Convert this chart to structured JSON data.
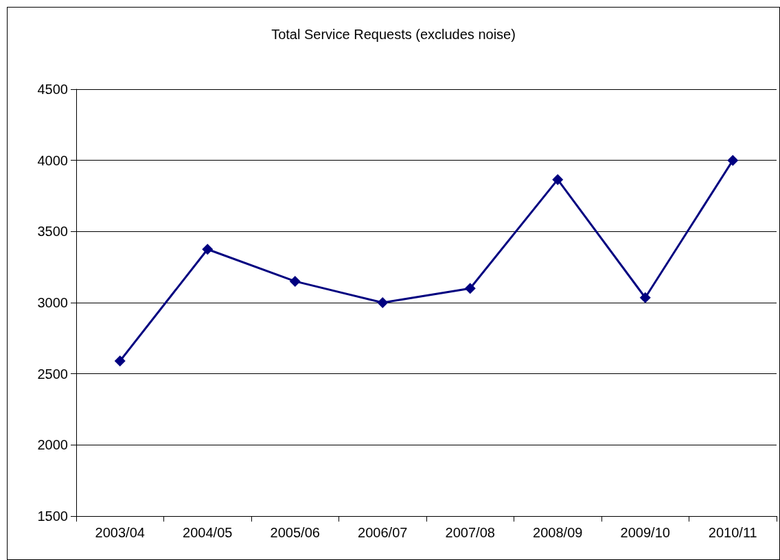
{
  "chart_data": {
    "type": "line",
    "title": "Total Service Requests (excludes noise)",
    "categories": [
      "2003/04",
      "2004/05",
      "2005/06",
      "2006/07",
      "2007/08",
      "2008/09",
      "2009/10",
      "2010/11"
    ],
    "series": [
      {
        "color": "#000080",
        "values": [
          2590,
          3375,
          3150,
          3000,
          3100,
          3865,
          3035,
          4000
        ]
      }
    ],
    "ylim": [
      1500,
      4500
    ],
    "yticks": [
      1500,
      2000,
      2500,
      3000,
      3500,
      4000,
      4500
    ],
    "grid": "y",
    "marker": "diamond",
    "line_style": "solid"
  }
}
